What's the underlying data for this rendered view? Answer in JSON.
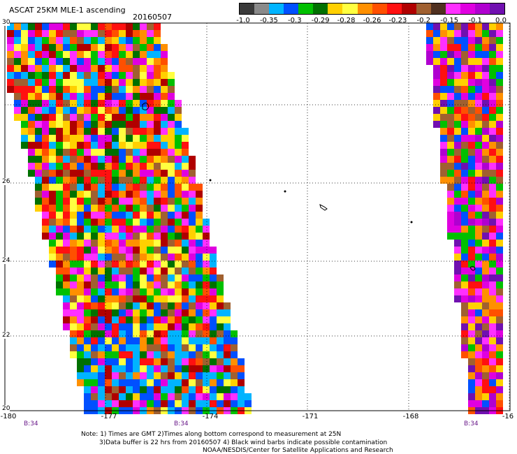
{
  "title": "ASCAT 25KM MLE-1 ascending",
  "date": "20160507",
  "colorbar": {
    "colors": [
      "#3a3a3a",
      "#8a8a8a",
      "#00b4ff",
      "#0050ff",
      "#00c000",
      "#007000",
      "#ffd000",
      "#ffff40",
      "#ff9000",
      "#ff5000",
      "#ff1010",
      "#b00000",
      "#a06030",
      "#503020",
      "#ff30ff",
      "#e000e0",
      "#b000d0",
      "#7010b0"
    ],
    "ticks": [
      "-1.0",
      "-0.35",
      "-0.3",
      "-0.29",
      "-0.28",
      "-0.26",
      "-0.23",
      "-0.2",
      "-0.15",
      "-0.1",
      "0.0"
    ]
  },
  "axes": {
    "lon_ticks": [
      "-180",
      "-177",
      "-174",
      "-171",
      "-168",
      "-16"
    ],
    "lat_ticks": [
      "30",
      "26",
      "24",
      "22",
      "20"
    ],
    "lon_range": [
      -180,
      -165
    ],
    "lat_range": [
      20,
      30
    ],
    "grid": "dotted"
  },
  "rev_labels": [
    "B:34",
    "B:34",
    "B:34"
  ],
  "notes": {
    "line1": "Note: 1) Times are GMT 2)Times along bottom correspond to measurement at 25N",
    "line2": "3)Data buffer is 22 hrs from 20160507 4) Black wind barbs indicate possible contamination",
    "line3": "NOAA/NESDIS/Center for Satellite Applications and Research"
  }
}
